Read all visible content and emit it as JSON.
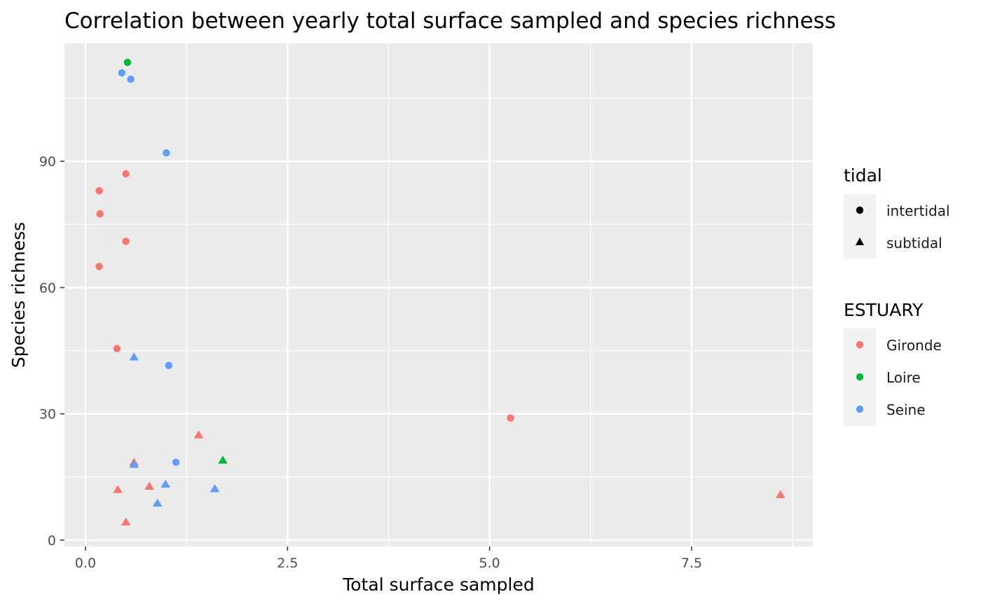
{
  "chart_data": {
    "type": "scatter",
    "title": "Correlation between yearly total surface sampled and species richness",
    "xlabel": "Total surface sampled",
    "ylabel": "Species richness",
    "xlim": [
      -0.26,
      9.0
    ],
    "ylim": [
      -1.5,
      118
    ],
    "x_ticks": [
      0.0,
      2.5,
      5.0,
      7.5
    ],
    "x_tick_labels": [
      "0.0",
      "2.5",
      "5.0",
      "7.5"
    ],
    "y_ticks": [
      0,
      30,
      60,
      90
    ],
    "y_tick_labels": [
      "0",
      "30",
      "60",
      "90"
    ],
    "grid": true,
    "legend_position": "right",
    "legends": {
      "shape": {
        "title": "tidal",
        "items": [
          {
            "label": "intertidal",
            "shape": "circle"
          },
          {
            "label": "subtidal",
            "shape": "triangle"
          }
        ]
      },
      "color": {
        "title": "ESTUARY",
        "items": [
          {
            "label": "Gironde",
            "color": "#F8766D"
          },
          {
            "label": "Loire",
            "color": "#00BA38"
          },
          {
            "label": "Seine",
            "color": "#619CFF"
          }
        ]
      }
    },
    "points": [
      {
        "x": 0.52,
        "y": 113.5,
        "estuary": "Loire",
        "tidal": "intertidal"
      },
      {
        "x": 0.45,
        "y": 111.0,
        "estuary": "Seine",
        "tidal": "intertidal"
      },
      {
        "x": 0.56,
        "y": 109.5,
        "estuary": "Seine",
        "tidal": "intertidal"
      },
      {
        "x": 1.0,
        "y": 92.0,
        "estuary": "Seine",
        "tidal": "intertidal"
      },
      {
        "x": 0.5,
        "y": 87.0,
        "estuary": "Gironde",
        "tidal": "intertidal"
      },
      {
        "x": 0.17,
        "y": 83.0,
        "estuary": "Gironde",
        "tidal": "intertidal"
      },
      {
        "x": 0.18,
        "y": 77.5,
        "estuary": "Gironde",
        "tidal": "intertidal"
      },
      {
        "x": 0.5,
        "y": 71.0,
        "estuary": "Gironde",
        "tidal": "intertidal"
      },
      {
        "x": 0.17,
        "y": 65.0,
        "estuary": "Gironde",
        "tidal": "intertidal"
      },
      {
        "x": 0.39,
        "y": 45.5,
        "estuary": "Gironde",
        "tidal": "intertidal"
      },
      {
        "x": 1.03,
        "y": 41.5,
        "estuary": "Seine",
        "tidal": "intertidal"
      },
      {
        "x": 5.26,
        "y": 29.0,
        "estuary": "Gironde",
        "tidal": "intertidal"
      },
      {
        "x": 1.12,
        "y": 18.5,
        "estuary": "Seine",
        "tidal": "intertidal"
      },
      {
        "x": 0.6,
        "y": 43.5,
        "estuary": "Seine",
        "tidal": "subtidal"
      },
      {
        "x": 1.4,
        "y": 25.0,
        "estuary": "Gironde",
        "tidal": "subtidal"
      },
      {
        "x": 1.7,
        "y": 19.0,
        "estuary": "Loire",
        "tidal": "subtidal"
      },
      {
        "x": 0.6,
        "y": 18.5,
        "estuary": "Gironde",
        "tidal": "subtidal"
      },
      {
        "x": 0.6,
        "y": 18.0,
        "estuary": "Seine",
        "tidal": "subtidal"
      },
      {
        "x": 0.99,
        "y": 13.3,
        "estuary": "Seine",
        "tidal": "subtidal"
      },
      {
        "x": 0.79,
        "y": 12.8,
        "estuary": "Gironde",
        "tidal": "subtidal"
      },
      {
        "x": 1.6,
        "y": 12.2,
        "estuary": "Seine",
        "tidal": "subtidal"
      },
      {
        "x": 0.4,
        "y": 12.0,
        "estuary": "Gironde",
        "tidal": "subtidal"
      },
      {
        "x": 0.89,
        "y": 8.8,
        "estuary": "Seine",
        "tidal": "subtidal"
      },
      {
        "x": 0.5,
        "y": 4.3,
        "estuary": "Gironde",
        "tidal": "subtidal"
      },
      {
        "x": 8.6,
        "y": 10.8,
        "estuary": "Gironde",
        "tidal": "subtidal"
      }
    ]
  }
}
